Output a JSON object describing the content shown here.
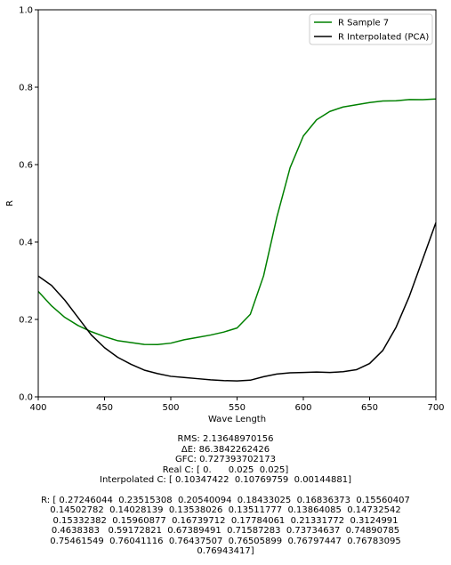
{
  "chart_data": {
    "type": "line",
    "xlabel": "Wave Length",
    "ylabel": "R",
    "xlim": [
      400,
      700
    ],
    "ylim": [
      0,
      1
    ],
    "xticks": [
      400,
      450,
      500,
      550,
      600,
      650,
      700
    ],
    "yticks": [
      0.0,
      0.2,
      0.4,
      0.6,
      0.8,
      1.0
    ],
    "xtick_labels": [
      "400",
      "450",
      "500",
      "550",
      "600",
      "650",
      "700"
    ],
    "ytick_labels": [
      "0.0",
      "0.2",
      "0.4",
      "0.6",
      "0.8",
      "1.0"
    ],
    "legend_position": "top-right",
    "x": [
      400,
      410,
      420,
      430,
      440,
      450,
      460,
      470,
      480,
      490,
      500,
      510,
      520,
      530,
      540,
      550,
      560,
      570,
      580,
      590,
      600,
      610,
      620,
      630,
      640,
      650,
      660,
      670,
      680,
      690,
      700
    ],
    "series": [
      {
        "name": "R Sample 7",
        "color": "#008000",
        "values": [
          0.27246044,
          0.23515308,
          0.20540094,
          0.18433025,
          0.16836373,
          0.15560407,
          0.14502782,
          0.14028139,
          0.13538026,
          0.13511777,
          0.13864085,
          0.14732542,
          0.15332382,
          0.15960877,
          0.16739712,
          0.17784061,
          0.21331772,
          0.3124991,
          0.4638383,
          0.59172821,
          0.67389491,
          0.71587283,
          0.73734637,
          0.74890785,
          0.75461549,
          0.76041116,
          0.76437507,
          0.76505899,
          0.76797447,
          0.76783095,
          0.76943417
        ]
      },
      {
        "name": "R Interpolated (PCA)",
        "color": "#000000",
        "values": [
          0.312,
          0.288,
          0.25,
          0.205,
          0.16,
          0.127,
          0.102,
          0.084,
          0.069,
          0.06,
          0.053,
          0.05,
          0.047,
          0.044,
          0.042,
          0.041,
          0.043,
          0.052,
          0.059,
          0.062,
          0.063,
          0.064,
          0.063,
          0.065,
          0.07,
          0.086,
          0.12,
          0.18,
          0.26,
          0.355,
          0.45
        ]
      }
    ]
  },
  "info": {
    "rms": "RMS: 2.13648970156",
    "delta_e": "ΔE: 86.3842262426",
    "gfc": "GFC: 0.727393702173",
    "real_c": "Real C: [ 0.      0.025  0.025]",
    "interp_c": "Interpolated C: [ 0.10347422  0.10769759  0.00144881]",
    "r_lines": [
      "R: [ 0.27246044  0.23515308  0.20540094  0.18433025  0.16836373  0.15560407",
      "0.14502782  0.14028139  0.13538026  0.13511777  0.13864085  0.14732542",
      "0.15332382  0.15960877  0.16739712  0.17784061  0.21331772  0.3124991",
      "0.4638383   0.59172821  0.67389491  0.71587283  0.73734637  0.74890785",
      "0.75461549  0.76041116  0.76437507  0.76505899  0.76797447  0.76783095",
      "0.76943417]"
    ]
  }
}
